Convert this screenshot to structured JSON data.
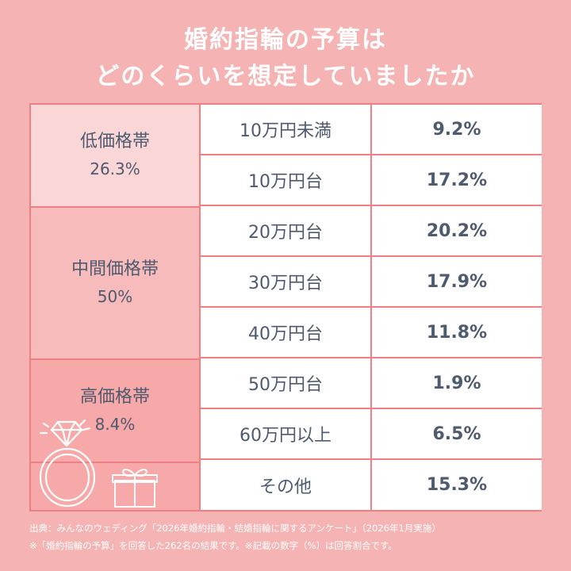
{
  "title": {
    "line1": "婚約指輪の予算は",
    "line2": "どのくらいを想定していましたか"
  },
  "groups": [
    {
      "label": "低価格帯",
      "pct": "26.3%"
    },
    {
      "label": "中間価格帯",
      "pct": "50%"
    },
    {
      "label": "高価格帯",
      "pct": "8.4%"
    }
  ],
  "rows": [
    {
      "label": "10万円未満",
      "value": "9.2%"
    },
    {
      "label": "10万円台",
      "value": "17.2%"
    },
    {
      "label": "20万円台",
      "value": "20.2%"
    },
    {
      "label": "30万円台",
      "value": "17.9%"
    },
    {
      "label": "40万円台",
      "value": "11.8%"
    },
    {
      "label": "50万円台",
      "value": "1.9%"
    },
    {
      "label": "60万円以上",
      "value": "6.5%"
    },
    {
      "label": "その他",
      "value": "15.3%"
    }
  ],
  "footer": {
    "source": "出典：みんなのウェディング「2026年婚約指輪・結婚指輪に関するアンケート」（2026年1月実施）",
    "note": "※「婚約指輪の予算」を回答した262名の結果です。※記載の数字（%）は回答割合です。"
  },
  "colors": {
    "background": "#f6b3b3",
    "border": "#ef7f82",
    "text": "#4e5a6f",
    "low": "#fad6d7",
    "mid": "#f8bbbb",
    "high": "#f7a8a8"
  },
  "icons": [
    "diamond-ring-icon",
    "gift-box-icon"
  ]
}
